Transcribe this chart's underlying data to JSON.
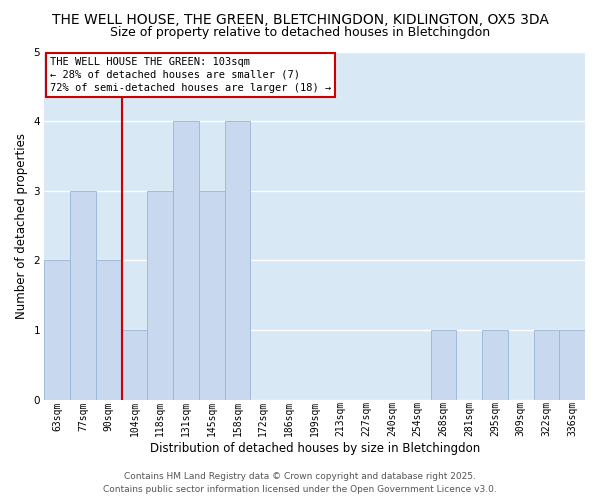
{
  "title": "THE WELL HOUSE, THE GREEN, BLETCHINGDON, KIDLINGTON, OX5 3DA",
  "subtitle": "Size of property relative to detached houses in Bletchingdon",
  "xlabel": "Distribution of detached houses by size in Bletchingdon",
  "ylabel": "Number of detached properties",
  "bin_labels": [
    "63sqm",
    "77sqm",
    "90sqm",
    "104sqm",
    "118sqm",
    "131sqm",
    "145sqm",
    "158sqm",
    "172sqm",
    "186sqm",
    "199sqm",
    "213sqm",
    "227sqm",
    "240sqm",
    "254sqm",
    "268sqm",
    "281sqm",
    "295sqm",
    "309sqm",
    "322sqm",
    "336sqm"
  ],
  "bar_heights": [
    2,
    3,
    2,
    1,
    3,
    4,
    3,
    4,
    0,
    0,
    0,
    0,
    0,
    0,
    0,
    1,
    0,
    1,
    0,
    1,
    1
  ],
  "bar_color": "#c8d8ee",
  "bar_edge_color": "#9ab4d4",
  "bg_color": "#d8e8f4",
  "grid_color": "#ffffff",
  "vline_x_index": 3,
  "vline_color": "#cc0000",
  "annotation_title": "THE WELL HOUSE THE GREEN: 103sqm",
  "annotation_line1": "← 28% of detached houses are smaller (7)",
  "annotation_line2": "72% of semi-detached houses are larger (18) →",
  "annotation_box_color": "#ffffff",
  "annotation_border_color": "#cc0000",
  "ylim": [
    0,
    5
  ],
  "yticks": [
    0,
    1,
    2,
    3,
    4,
    5
  ],
  "footnote1": "Contains HM Land Registry data © Crown copyright and database right 2025.",
  "footnote2": "Contains public sector information licensed under the Open Government Licence v3.0.",
  "title_fontsize": 10,
  "subtitle_fontsize": 9,
  "label_fontsize": 8.5,
  "tick_fontsize": 7,
  "annot_fontsize": 7.5,
  "footnote_fontsize": 6.5
}
